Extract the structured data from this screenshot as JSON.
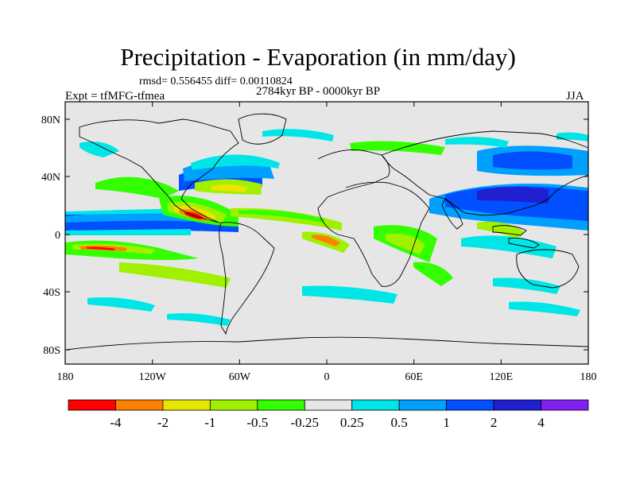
{
  "title": "Precipitation - Evaporation (in mm/day)",
  "stats": "rmsd= 0.556455 diff= 0.00110824",
  "experiment": "Expt = tfMFG-tfmea",
  "period": "2784kyr BP - 0000kyr BP",
  "season": "JJA",
  "lat_ticks": [
    "80N",
    "40N",
    "0",
    "40S",
    "80S"
  ],
  "lon_ticks": [
    "180",
    "120W",
    "60W",
    "0",
    "60E",
    "120E",
    "180"
  ],
  "colorbar": {
    "labels": [
      "-4",
      "-2",
      "-1",
      "-0.5",
      "-0.25",
      "0.25",
      "0.5",
      "1",
      "2",
      "4"
    ],
    "colors": [
      "#ff0000",
      "#ff8000",
      "#e6e600",
      "#a0f000",
      "#33ff00",
      "#e6e6e6",
      "#00e6e6",
      "#00a0ff",
      "#0050ff",
      "#2020d0",
      "#8020f0"
    ]
  }
}
